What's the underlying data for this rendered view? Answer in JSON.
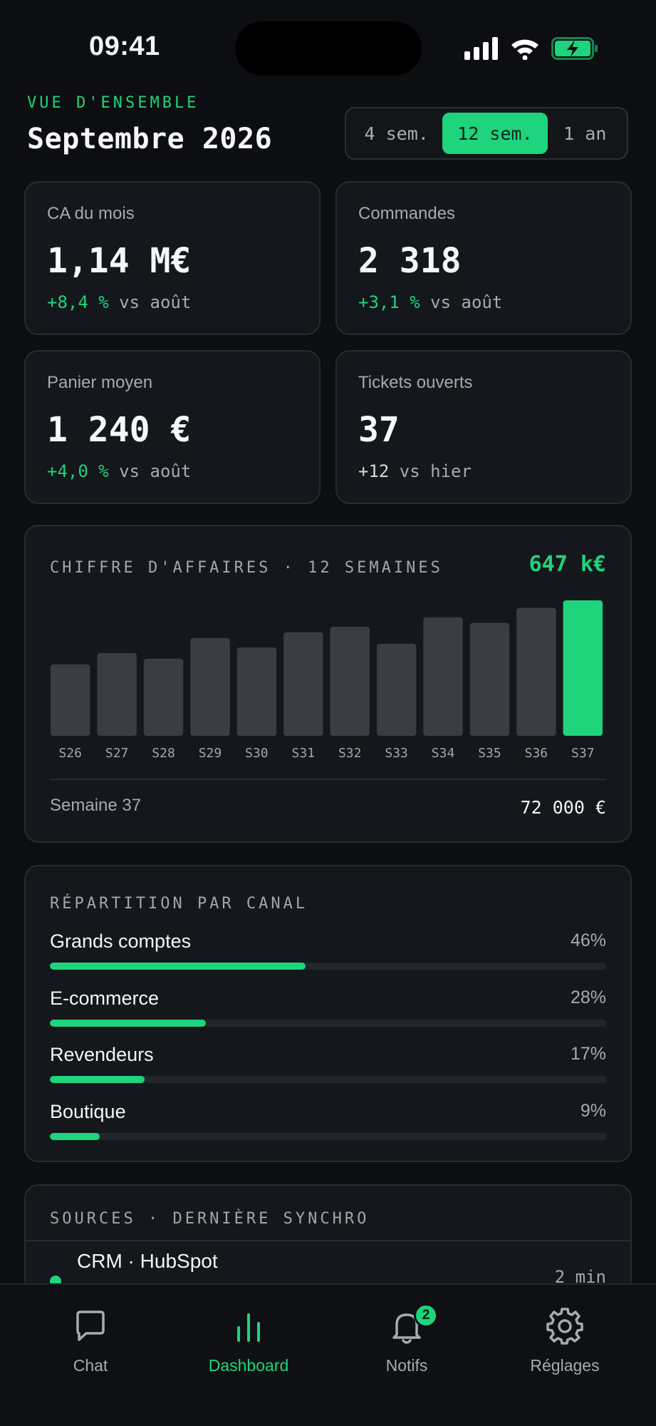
{
  "status_bar": {
    "time": "09:41"
  },
  "header": {
    "eyebrow": "VUE D'ENSEMBLE",
    "title": "Septembre 2026",
    "periods": [
      "4 sem.",
      "12 sem.",
      "1 an"
    ],
    "active_period": "12 sem."
  },
  "kpis": [
    {
      "label": "CA du mois",
      "value": "1,14 M€",
      "delta": "+8,4 %",
      "compare": " vs août",
      "positive": true
    },
    {
      "label": "Commandes",
      "value": "2 318",
      "delta": "+3,1 %",
      "compare": " vs août",
      "positive": true
    },
    {
      "label": "Panier moyen",
      "value": "1 240 €",
      "delta": "+4,0 %",
      "compare": " vs août",
      "positive": true
    },
    {
      "label": "Tickets ouverts",
      "value": "37",
      "delta": "+12",
      "compare": " vs hier",
      "positive": false
    }
  ],
  "revenue_chart": {
    "title": "CHIFFRE D'AFFAIRES · 12 SEMAINES",
    "total": "647 k€",
    "selected_label": "Semaine 37",
    "selected_value": "72 000 €"
  },
  "chart_data": {
    "type": "bar",
    "title": "CHIFFRE D'AFFAIRES · 12 SEMAINES",
    "categories": [
      "S26",
      "S27",
      "S28",
      "S29",
      "S30",
      "S31",
      "S32",
      "S33",
      "S34",
      "S35",
      "S36",
      "S37"
    ],
    "values": [
      38,
      44,
      41,
      52,
      47,
      55,
      58,
      49,
      63,
      60,
      68,
      72
    ],
    "highlight_index": 11,
    "ylim": [
      0,
      72
    ],
    "grid": false,
    "colors": {
      "bar": "#3a3d42",
      "highlight": "#1ed47d"
    }
  },
  "channels": {
    "title": "RÉPARTITION PAR CANAL",
    "items": [
      {
        "name": "Grands comptes",
        "pct_label": "46%",
        "pct": 46
      },
      {
        "name": "E-commerce",
        "pct_label": "28%",
        "pct": 28
      },
      {
        "name": "Revendeurs",
        "pct_label": "17%",
        "pct": 17
      },
      {
        "name": "Boutique",
        "pct_label": "9%",
        "pct": 9
      }
    ]
  },
  "sources": {
    "title": "SOURCES · DERNIÈRE SYNCHRO",
    "items": [
      {
        "name": "CRM · HubSpot",
        "time": "2 min",
        "status_color": "#1ed47d"
      }
    ]
  },
  "tabbar": {
    "tabs": [
      {
        "label": "Chat",
        "icon": "chat-bubble-icon"
      },
      {
        "label": "Dashboard",
        "icon": "bar-chart-icon"
      },
      {
        "label": "Notifs",
        "icon": "bell-icon",
        "badge": "2"
      },
      {
        "label": "Réglages",
        "icon": "gear-icon"
      }
    ],
    "active": "Dashboard"
  },
  "colors": {
    "accent": "#1ed47d",
    "background": "#0c0e11",
    "card": "#14171b"
  }
}
